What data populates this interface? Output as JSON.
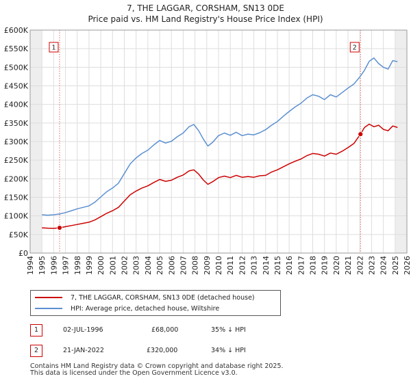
{
  "chart_data": {
    "type": "line",
    "title": "7, THE LAGGAR, CORSHAM, SN13 0DE",
    "subtitle": "Price paid vs. HM Land Registry's House Price Index (HPI)",
    "xlim": [
      1994,
      2026
    ],
    "ylim": [
      0,
      600000
    ],
    "x_ticks": [
      1994,
      1995,
      1996,
      1997,
      1998,
      1999,
      2000,
      2001,
      2002,
      2003,
      2004,
      2005,
      2006,
      2007,
      2008,
      2009,
      2010,
      2011,
      2012,
      2013,
      2014,
      2015,
      2016,
      2017,
      2018,
      2019,
      2020,
      2021,
      2022,
      2023,
      2024,
      2025,
      2026
    ],
    "y_ticks": [
      {
        "value": 0,
        "label": "£0"
      },
      {
        "value": 50000,
        "label": "£50K"
      },
      {
        "value": 100000,
        "label": "£100K"
      },
      {
        "value": 150000,
        "label": "£150K"
      },
      {
        "value": 200000,
        "label": "£200K"
      },
      {
        "value": 250000,
        "label": "£250K"
      },
      {
        "value": 300000,
        "label": "£300K"
      },
      {
        "value": 350000,
        "label": "£350K"
      },
      {
        "value": 400000,
        "label": "£400K"
      },
      {
        "value": 450000,
        "label": "£450K"
      },
      {
        "value": 500000,
        "label": "£500K"
      },
      {
        "value": 550000,
        "label": "£550K"
      },
      {
        "value": 600000,
        "label": "£600K"
      }
    ],
    "series": [
      {
        "name": "7, THE LAGGAR, CORSHAM, SN13 0DE (detached house)",
        "color": "#cc0000",
        "points": [
          [
            1995.0,
            68000
          ],
          [
            1995.5,
            67000
          ],
          [
            1996.0,
            66500
          ],
          [
            1996.5,
            68000
          ],
          [
            1997.0,
            71000
          ],
          [
            1997.5,
            74000
          ],
          [
            1998.0,
            77000
          ],
          [
            1998.5,
            80000
          ],
          [
            1999.0,
            83000
          ],
          [
            1999.5,
            89000
          ],
          [
            2000.0,
            98000
          ],
          [
            2000.5,
            107000
          ],
          [
            2001.0,
            114000
          ],
          [
            2001.5,
            123000
          ],
          [
            2002.0,
            140000
          ],
          [
            2002.5,
            157000
          ],
          [
            2003.0,
            167000
          ],
          [
            2003.5,
            175000
          ],
          [
            2004.0,
            181000
          ],
          [
            2004.5,
            190000
          ],
          [
            2005.0,
            198000
          ],
          [
            2005.5,
            193000
          ],
          [
            2006.0,
            196000
          ],
          [
            2006.5,
            204000
          ],
          [
            2007.0,
            210000
          ],
          [
            2007.5,
            221000
          ],
          [
            2007.9,
            224000
          ],
          [
            2008.3,
            213000
          ],
          [
            2008.7,
            197000
          ],
          [
            2009.1,
            185000
          ],
          [
            2009.5,
            192000
          ],
          [
            2010.0,
            203000
          ],
          [
            2010.5,
            207000
          ],
          [
            2011.0,
            203000
          ],
          [
            2011.5,
            209000
          ],
          [
            2012.0,
            204000
          ],
          [
            2012.5,
            206000
          ],
          [
            2013.0,
            204000
          ],
          [
            2013.5,
            208000
          ],
          [
            2014.0,
            209000
          ],
          [
            2014.5,
            218000
          ],
          [
            2015.0,
            224000
          ],
          [
            2015.5,
            232000
          ],
          [
            2016.0,
            240000
          ],
          [
            2016.5,
            247000
          ],
          [
            2017.0,
            253000
          ],
          [
            2017.5,
            262000
          ],
          [
            2018.0,
            268000
          ],
          [
            2018.5,
            266000
          ],
          [
            2019.0,
            261000
          ],
          [
            2019.5,
            269000
          ],
          [
            2020.0,
            266000
          ],
          [
            2020.5,
            274000
          ],
          [
            2021.0,
            284000
          ],
          [
            2021.5,
            295000
          ],
          [
            2022.06,
            320000
          ],
          [
            2022.4,
            338000
          ],
          [
            2022.8,
            347000
          ],
          [
            2023.2,
            340000
          ],
          [
            2023.6,
            344000
          ],
          [
            2024.0,
            333000
          ],
          [
            2024.4,
            329000
          ],
          [
            2024.8,
            342000
          ],
          [
            2025.2,
            338000
          ]
        ]
      },
      {
        "name": "HPI: Average price, detached house, Wiltshire",
        "color": "#5b8fd1",
        "points": [
          [
            1995.0,
            103000
          ],
          [
            1995.5,
            102000
          ],
          [
            1996.0,
            103000
          ],
          [
            1996.5,
            105000
          ],
          [
            1997.0,
            109000
          ],
          [
            1997.5,
            114000
          ],
          [
            1998.0,
            119000
          ],
          [
            1998.5,
            123000
          ],
          [
            1999.0,
            127000
          ],
          [
            1999.5,
            137000
          ],
          [
            2000.0,
            151000
          ],
          [
            2000.5,
            165000
          ],
          [
            2001.0,
            175000
          ],
          [
            2001.5,
            188000
          ],
          [
            2002.0,
            214000
          ],
          [
            2002.5,
            240000
          ],
          [
            2003.0,
            256000
          ],
          [
            2003.5,
            268000
          ],
          [
            2004.0,
            277000
          ],
          [
            2004.5,
            291000
          ],
          [
            2005.0,
            303000
          ],
          [
            2005.5,
            296000
          ],
          [
            2006.0,
            301000
          ],
          [
            2006.5,
            313000
          ],
          [
            2007.0,
            323000
          ],
          [
            2007.5,
            340000
          ],
          [
            2007.9,
            346000
          ],
          [
            2008.3,
            330000
          ],
          [
            2008.7,
            307000
          ],
          [
            2009.1,
            288000
          ],
          [
            2009.5,
            298000
          ],
          [
            2010.0,
            316000
          ],
          [
            2010.5,
            323000
          ],
          [
            2011.0,
            317000
          ],
          [
            2011.5,
            325000
          ],
          [
            2012.0,
            316000
          ],
          [
            2012.5,
            320000
          ],
          [
            2013.0,
            318000
          ],
          [
            2013.5,
            324000
          ],
          [
            2014.0,
            332000
          ],
          [
            2014.5,
            344000
          ],
          [
            2015.0,
            354000
          ],
          [
            2015.5,
            368000
          ],
          [
            2016.0,
            381000
          ],
          [
            2016.5,
            393000
          ],
          [
            2017.0,
            403000
          ],
          [
            2017.5,
            417000
          ],
          [
            2018.0,
            426000
          ],
          [
            2018.5,
            422000
          ],
          [
            2019.0,
            413000
          ],
          [
            2019.5,
            426000
          ],
          [
            2020.0,
            420000
          ],
          [
            2020.5,
            432000
          ],
          [
            2021.0,
            444000
          ],
          [
            2021.5,
            455000
          ],
          [
            2022.0,
            474000
          ],
          [
            2022.4,
            492000
          ],
          [
            2022.8,
            516000
          ],
          [
            2023.2,
            525000
          ],
          [
            2023.6,
            510000
          ],
          [
            2024.0,
            500000
          ],
          [
            2024.4,
            495000
          ],
          [
            2024.8,
            518000
          ],
          [
            2025.2,
            515000
          ]
        ]
      }
    ],
    "markers": [
      {
        "label": "1",
        "x": 1996.5,
        "y": 68000
      },
      {
        "label": "2",
        "x": 2022.06,
        "y": 320000
      }
    ],
    "shaded_ranges": [
      [
        1994,
        1995
      ],
      [
        2025.0,
        2026
      ]
    ]
  },
  "sales": [
    {
      "label": "1",
      "date": "02-JUL-1996",
      "price": "£68,000",
      "hpi": "35% ↓ HPI"
    },
    {
      "label": "2",
      "date": "21-JAN-2022",
      "price": "£320,000",
      "hpi": "34% ↓ HPI"
    }
  ],
  "footer": {
    "line1": "Contains HM Land Registry data © Crown copyright and database right 2025.",
    "line2": "This data is licensed under the Open Government Licence v3.0."
  }
}
